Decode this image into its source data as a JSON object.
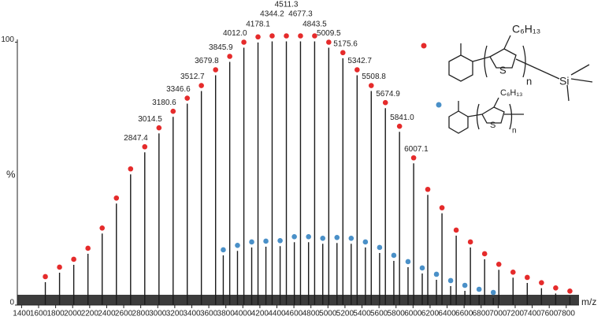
{
  "chart_data": {
    "type": "stick-spectrum",
    "xlabel": "m/z",
    "ylabel": "%",
    "xlim": [
      1350,
      7950
    ],
    "ylim": [
      0,
      100
    ],
    "xticks": [
      1400,
      1600,
      1800,
      2000,
      2200,
      2400,
      2600,
      2800,
      3000,
      3200,
      3400,
      3600,
      3800,
      4000,
      4200,
      4400,
      4600,
      4800,
      5000,
      5200,
      5400,
      5600,
      5800,
      6000,
      6200,
      6400,
      6600,
      6800,
      7000,
      7200,
      7400,
      7600,
      7800
    ],
    "yticks": [
      0,
      100
    ],
    "series": [
      {
        "color": "#e52b2b",
        "x": [
          1679,
          1846,
          2013,
          2180,
          2347,
          2514,
          2681,
          2847.4,
          3014.5,
          3180.6,
          3346.6,
          3512.7,
          3679.8,
          3845.9,
          4012,
          4178.1,
          4344.2,
          4511.3,
          4677.3,
          4843.5,
          5009.5,
          5175.6,
          5342.7,
          5508.8,
          5674.9,
          5841,
          6007.1,
          6173,
          6340,
          6507,
          6674,
          6841,
          7008,
          7175,
          7342,
          7509,
          7676,
          7843
        ],
        "x_labels": [
          null,
          null,
          null,
          null,
          null,
          null,
          null,
          "2847.4",
          "3014.5",
          "3180.6",
          "3346.6",
          "3512.7",
          "3679.8",
          "3845.9",
          "4012.0",
          "4178.1",
          "4344.2",
          "4511.3",
          "4677.3",
          "4843.5",
          "5009.5",
          "5175.6",
          "5342.7",
          "5508.8",
          "5674.9",
          "5841.0",
          "6007.1",
          null,
          null,
          null,
          null,
          null,
          null,
          null,
          null,
          null,
          null,
          null
        ],
        "values": [
          10.8,
          14.4,
          17.4,
          21.6,
          29.3,
          40.7,
          51.8,
          60.2,
          67.4,
          73.7,
          78.7,
          83.5,
          89.5,
          94.6,
          100,
          102,
          102.4,
          102.4,
          102.4,
          102.4,
          100,
          96,
          89.5,
          83.5,
          77,
          68,
          56,
          44,
          37,
          28.5,
          24,
          19.5,
          15.5,
          12.5,
          10.5,
          8.5,
          6.5,
          5.3
        ]
      },
      {
        "color": "#4a90c8",
        "x": [
          3770,
          3937,
          4104,
          4271,
          4438,
          4605,
          4772,
          4939,
          5106,
          5273,
          5440,
          5607,
          5774,
          5941,
          6108,
          6275,
          6442,
          6609,
          6776,
          6943
        ],
        "values": [
          21,
          22.7,
          24,
          24.3,
          24.5,
          26,
          26,
          25.4,
          25.7,
          25.4,
          24,
          21.9,
          18.9,
          16.5,
          14.1,
          11.7,
          9.3,
          7.5,
          6,
          4.8
        ]
      }
    ],
    "structures": [
      {
        "substituent": "C₆H₁₃",
        "ring": "S",
        "repeat": "n",
        "end": "Si"
      },
      {
        "substituent": "C₆H₁₃",
        "ring": "S",
        "repeat": "n"
      }
    ]
  }
}
